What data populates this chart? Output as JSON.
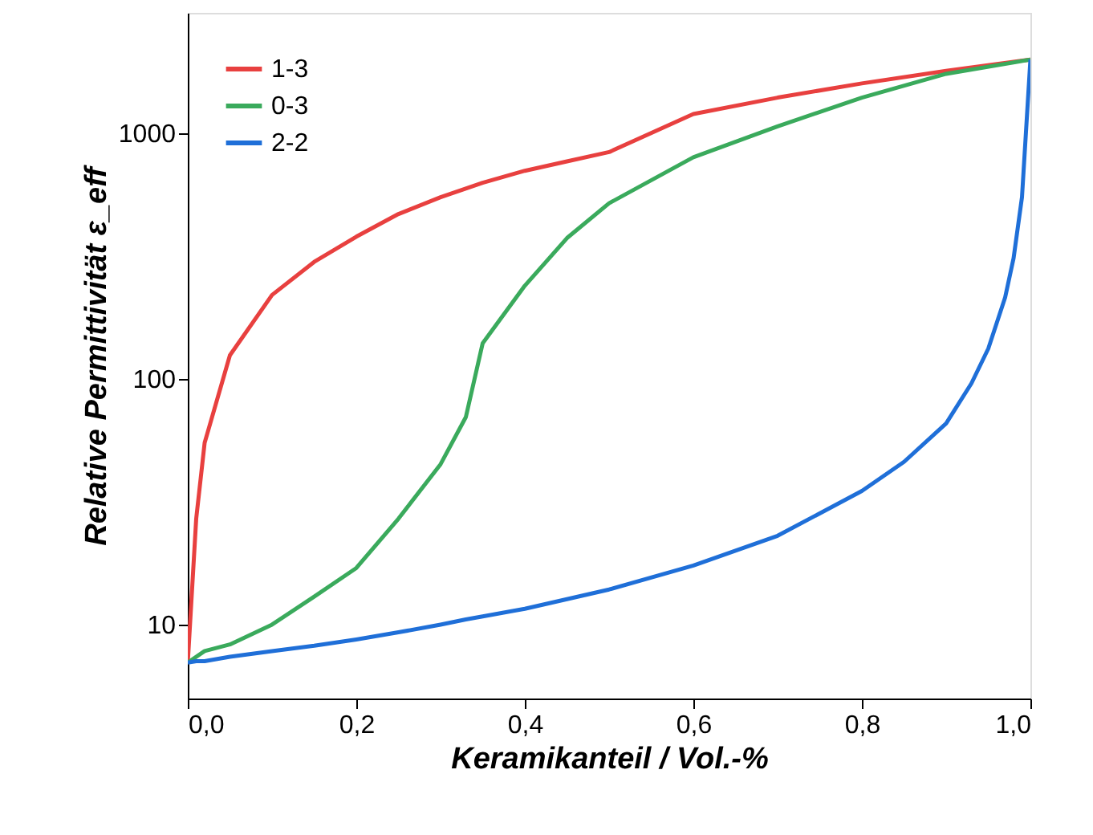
{
  "chart_data": {
    "type": "line",
    "xlabel": "Keramikanteil / Vol.-%",
    "ylabel": "Relative Permittivität ε_eff",
    "log": "y",
    "grid": false,
    "legend": "top left",
    "marker": "none",
    "line_style": "solid",
    "xlim": [
      0,
      1
    ],
    "xticks": [
      {
        "value": 0,
        "label": "0,0"
      },
      {
        "value": 0.2,
        "label": "0,2"
      },
      {
        "value": 0.4,
        "label": "0,4"
      },
      {
        "value": 0.6,
        "label": "0,6"
      },
      {
        "value": 0.8,
        "label": "0,8"
      },
      {
        "value": 1,
        "label": "1,0"
      }
    ],
    "ylim": [
      5,
      3100
    ],
    "yticks": [
      10,
      100,
      1000
    ],
    "x": [
      0,
      0.01,
      0.02,
      0.05,
      0.1,
      0.15,
      0.2,
      0.25,
      0.3,
      0.33,
      0.35,
      0.4,
      0.45,
      0.5,
      0.6,
      0.7,
      0.8,
      0.85,
      0.9,
      0.93,
      0.95,
      0.97,
      0.98,
      0.99,
      1
    ],
    "series": [
      {
        "name": "1-3",
        "color": "#e8403f",
        "x": [
          0,
          0.01,
          0.02,
          0.05,
          0.1,
          0.15,
          0.2,
          0.25,
          0.3,
          0.35,
          0.4,
          0.45,
          0.5,
          0.6,
          0.7,
          0.8,
          0.9,
          1
        ],
        "values": [
          7,
          27,
          55,
          125,
          220,
          300,
          380,
          470,
          550,
          630,
          705,
          770,
          840,
          1200,
          1400,
          1600,
          1800,
          2000
        ]
      },
      {
        "name": "0-3",
        "color": "#3aaa5c",
        "x": [
          0,
          0.02,
          0.05,
          0.1,
          0.15,
          0.2,
          0.25,
          0.3,
          0.33,
          0.35,
          0.4,
          0.45,
          0.5,
          0.6,
          0.7,
          0.8,
          0.9,
          1
        ],
        "values": [
          7,
          7.8,
          8.3,
          10,
          13,
          17,
          27,
          45,
          70,
          140,
          240,
          375,
          520,
          800,
          1070,
          1400,
          1750,
          2000
        ]
      },
      {
        "name": "2-2",
        "color": "#1f6fd8",
        "values": [
          7,
          7.1,
          7.1,
          7.4,
          7.8,
          8.2,
          8.7,
          9.3,
          10,
          10.5,
          10.8,
          11.6,
          12.7,
          13.9,
          17.4,
          23,
          35,
          46,
          66,
          96,
          133,
          215,
          310,
          550,
          2000
        ]
      }
    ]
  }
}
